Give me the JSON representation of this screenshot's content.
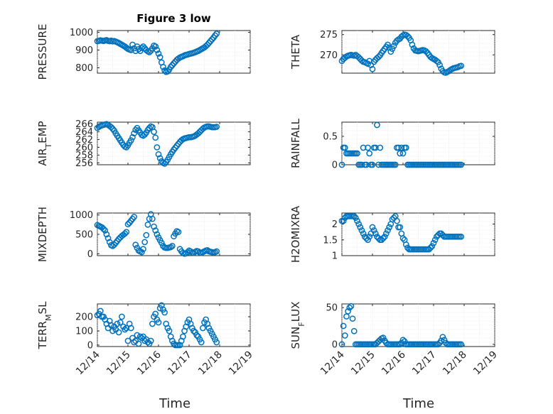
{
  "chart_data": [
    {
      "type": "scatter",
      "title": "Figure 3 low",
      "ylabel": "PRESSURE",
      "ylim": [
        770,
        1010
      ],
      "yticks": [
        800,
        900,
        1000
      ],
      "xlim": [
        0,
        5
      ],
      "x": [
        0,
        0.05,
        0.1,
        0.15,
        0.2,
        0.25,
        0.3,
        0.35,
        0.4,
        0.45,
        0.5,
        0.55,
        0.6,
        0.65,
        0.7,
        0.75,
        0.8,
        0.85,
        0.9,
        0.95,
        1.0,
        1.05,
        1.1,
        1.15,
        1.2,
        1.25,
        1.3,
        1.35,
        1.4,
        1.45,
        1.5,
        1.55,
        1.6,
        1.65,
        1.7,
        1.75,
        1.8,
        1.85,
        1.9,
        1.95,
        2.0,
        2.05,
        2.1,
        2.15,
        2.2,
        2.25,
        2.3,
        2.35,
        2.4,
        2.45,
        2.5,
        2.55,
        2.6,
        2.65,
        2.7,
        2.75,
        2.8,
        2.85,
        2.9,
        2.95,
        3.0,
        3.05,
        3.1,
        3.15,
        3.2,
        3.25,
        3.3,
        3.35,
        3.4,
        3.45,
        3.5,
        3.55,
        3.6,
        3.65,
        3.7,
        3.75,
        3.8,
        3.85,
        3.9
      ],
      "y": [
        950,
        952,
        955,
        953,
        951,
        954,
        956,
        952,
        950,
        953,
        949,
        951,
        948,
        944,
        940,
        935,
        930,
        925,
        920,
        913,
        907,
        903,
        900,
        930,
        910,
        895,
        920,
        905,
        895,
        912,
        920,
        910,
        900,
        893,
        888,
        896,
        910,
        925,
        920,
        900,
        880,
        860,
        830,
        805,
        785,
        777,
        780,
        790,
        805,
        815,
        825,
        835,
        845,
        852,
        858,
        862,
        865,
        870,
        873,
        875,
        878,
        880,
        882,
        885,
        888,
        892,
        895,
        900,
        905,
        910,
        915,
        922,
        930,
        940,
        950,
        960,
        970,
        982,
        992
      ]
    },
    {
      "type": "scatter",
      "ylabel": "THETA",
      "ylim": [
        265.5,
        276
      ],
      "yticks": [
        270,
        275
      ],
      "xlim": [
        0,
        5
      ],
      "x": [
        0,
        0.05,
        0.1,
        0.15,
        0.2,
        0.25,
        0.3,
        0.35,
        0.4,
        0.45,
        0.5,
        0.55,
        0.6,
        0.65,
        0.7,
        0.75,
        0.8,
        0.85,
        0.9,
        0.95,
        1.0,
        1.05,
        1.1,
        1.15,
        1.2,
        1.25,
        1.3,
        1.35,
        1.4,
        1.45,
        1.5,
        1.55,
        1.6,
        1.65,
        1.7,
        1.75,
        1.8,
        1.85,
        1.9,
        1.95,
        2.0,
        2.05,
        2.1,
        2.15,
        2.2,
        2.25,
        2.3,
        2.35,
        2.4,
        2.45,
        2.5,
        2.55,
        2.6,
        2.65,
        2.7,
        2.75,
        2.8,
        2.85,
        2.9,
        2.95,
        3.0,
        3.05,
        3.1,
        3.15,
        3.2,
        3.25,
        3.3,
        3.35,
        3.4,
        3.45,
        3.5,
        3.55,
        3.6,
        3.65,
        3.7,
        3.75,
        3.8,
        3.85,
        3.9
      ],
      "y": [
        268.5,
        269,
        269.3,
        269.6,
        269.8,
        269.9,
        270,
        269.9,
        269.8,
        270,
        269.7,
        269.4,
        269,
        268.6,
        268.3,
        268.2,
        268,
        267.8,
        268.5,
        267.5,
        266.5,
        268.3,
        268.8,
        269.2,
        269.5,
        269.9,
        270.5,
        271,
        271.5,
        272,
        272.5,
        271.8,
        270.8,
        271.5,
        272.2,
        273,
        273.5,
        273.8,
        274,
        274.5,
        274.8,
        275,
        274.9,
        274.6,
        274.2,
        273.6,
        272.5,
        271.6,
        271.1,
        271,
        270.9,
        271,
        271.1,
        271.2,
        271.1,
        270.9,
        270.5,
        270,
        269.5,
        269.2,
        269,
        268.8,
        268.5,
        268.2,
        267.5,
        266.6,
        266,
        265.7,
        265.6,
        265.8,
        266,
        266.3,
        266.5,
        266.7,
        266.8,
        266.9,
        267,
        267.2,
        267.3
      ]
    },
    {
      "type": "scatter",
      "ylabel": "AIR_TEMP",
      "ylim": [
        255.5,
        266.5
      ],
      "yticks": [
        256,
        258,
        260,
        262,
        264,
        266
      ],
      "xlim": [
        0,
        5
      ],
      "x": [
        0,
        0.05,
        0.1,
        0.15,
        0.2,
        0.25,
        0.3,
        0.35,
        0.4,
        0.45,
        0.5,
        0.55,
        0.6,
        0.65,
        0.7,
        0.75,
        0.8,
        0.85,
        0.9,
        0.95,
        1.0,
        1.05,
        1.1,
        1.15,
        1.2,
        1.25,
        1.3,
        1.35,
        1.4,
        1.45,
        1.5,
        1.55,
        1.6,
        1.65,
        1.7,
        1.75,
        1.8,
        1.85,
        1.9,
        1.95,
        2.0,
        2.05,
        2.1,
        2.15,
        2.2,
        2.25,
        2.3,
        2.35,
        2.4,
        2.45,
        2.5,
        2.55,
        2.6,
        2.65,
        2.7,
        2.75,
        2.8,
        2.85,
        2.9,
        2.95,
        3.0,
        3.05,
        3.1,
        3.15,
        3.2,
        3.25,
        3.3,
        3.35,
        3.4,
        3.45,
        3.5,
        3.55,
        3.6,
        3.65,
        3.7,
        3.75,
        3.8,
        3.85,
        3.9
      ],
      "y": [
        265,
        265.3,
        265.5,
        265.7,
        265.8,
        265.9,
        266,
        265.8,
        265.5,
        265.2,
        264.8,
        264.3,
        263.6,
        263,
        262.4,
        261.8,
        261.2,
        260.6,
        260.2,
        260,
        260.5,
        261.2,
        261.8,
        262.6,
        263.6,
        264.5,
        265,
        264.4,
        263.8,
        263.2,
        263,
        263.3,
        263.8,
        264.5,
        265,
        265.4,
        265.2,
        264,
        262.5,
        260,
        258.2,
        257.2,
        256.4,
        256,
        255.8,
        256.2,
        256.8,
        257.5,
        258.2,
        258.8,
        259.4,
        259.9,
        260.4,
        260.9,
        261.4,
        261.8,
        262.1,
        262.3,
        262.4,
        262.5,
        262.6,
        262.6,
        262.7,
        262.8,
        263,
        263.3,
        263.6,
        264,
        264.4,
        264.8,
        265.1,
        265.3,
        265.4,
        265.4,
        265.3,
        265.2,
        265.2,
        265.2,
        265.3
      ]
    },
    {
      "type": "scatter",
      "ylabel": "RAINFALL",
      "ylim": [
        0,
        0.75
      ],
      "yticks": [
        0,
        0.5
      ],
      "xlim": [
        0,
        5
      ],
      "x": [
        0,
        0.05,
        0.1,
        0.15,
        0.2,
        0.25,
        0.3,
        0.35,
        0.4,
        0.45,
        0.5,
        0.55,
        0.6,
        0.65,
        0.7,
        0.75,
        0.8,
        0.85,
        0.9,
        0.95,
        1.0,
        1.05,
        1.1,
        1.15,
        1.2,
        1.25,
        1.3,
        1.35,
        1.4,
        1.45,
        1.5,
        1.55,
        1.6,
        1.65,
        1.7,
        1.75,
        1.8,
        1.85,
        1.9,
        1.95,
        2.0,
        2.05,
        2.1,
        2.15,
        2.2,
        2.25,
        2.3,
        2.35,
        2.4,
        2.45,
        2.5,
        2.55,
        2.6,
        2.65,
        2.7,
        2.75,
        2.8,
        2.85,
        2.9,
        2.95,
        3.0,
        3.05,
        3.1,
        3.15,
        3.2,
        3.25,
        3.3,
        3.35,
        3.4,
        3.45,
        3.5,
        3.55,
        3.6,
        3.65,
        3.7,
        3.75,
        3.8,
        3.85,
        3.9
      ],
      "y": [
        0,
        0.3,
        0.3,
        0.2,
        0.2,
        0.2,
        0.2,
        0.2,
        0.2,
        0.2,
        0.2,
        0,
        0,
        0,
        0.3,
        0,
        0,
        0.3,
        0.2,
        0,
        0,
        0.3,
        0.3,
        0.7,
        0,
        0.3,
        0,
        0,
        0,
        0,
        0,
        0,
        0,
        0,
        0,
        0,
        0.3,
        0.3,
        0.2,
        0.3,
        0.2,
        0.3,
        0.3,
        0,
        0,
        0,
        0,
        0,
        0,
        0,
        0,
        0,
        0,
        0,
        0,
        0,
        0,
        0,
        0,
        0,
        0,
        0,
        0,
        0,
        0,
        0,
        0,
        0,
        0,
        0,
        0,
        0,
        0,
        0,
        0,
        0,
        0,
        0,
        0
      ]
    },
    {
      "type": "scatter",
      "ylabel": "MIXDEPTH",
      "ylim": [
        -50,
        1050
      ],
      "yticks": [
        0,
        500,
        1000
      ],
      "xlim": [
        0,
        5
      ],
      "x": [
        0,
        0.05,
        0.1,
        0.15,
        0.2,
        0.25,
        0.3,
        0.35,
        0.4,
        0.45,
        0.5,
        0.55,
        0.6,
        0.65,
        0.7,
        0.75,
        0.8,
        0.85,
        0.9,
        0.95,
        1.0,
        1.05,
        1.1,
        1.15,
        1.2,
        1.25,
        1.3,
        1.35,
        1.4,
        1.45,
        1.5,
        1.55,
        1.6,
        1.65,
        1.7,
        1.75,
        1.8,
        1.85,
        1.9,
        1.95,
        2.0,
        2.05,
        2.1,
        2.15,
        2.2,
        2.25,
        2.3,
        2.35,
        2.4,
        2.45,
        2.5,
        2.55,
        2.6,
        2.65,
        2.7,
        2.75,
        2.8,
        2.85,
        2.9,
        2.95,
        3.0,
        3.05,
        3.1,
        3.15,
        3.2,
        3.25,
        3.3,
        3.35,
        3.4,
        3.45,
        3.5,
        3.55,
        3.6,
        3.65,
        3.7,
        3.75,
        3.8,
        3.85,
        3.9
      ],
      "y": [
        740,
        720,
        700,
        680,
        640,
        600,
        500,
        400,
        300,
        220,
        200,
        230,
        280,
        330,
        380,
        420,
        460,
        490,
        520,
        560,
        760,
        800,
        850,
        900,
        950,
        230,
        150,
        80,
        60,
        40,
        120,
        300,
        480,
        750,
        900,
        1020,
        900,
        700,
        600,
        500,
        420,
        350,
        280,
        200,
        160,
        150,
        150,
        160,
        170,
        200,
        450,
        520,
        580,
        560,
        120,
        60,
        20,
        0,
        10,
        40,
        80,
        60,
        30,
        20,
        50,
        70,
        60,
        30,
        20,
        40,
        60,
        80,
        90,
        60,
        50,
        40,
        30,
        40,
        60
      ]
    },
    {
      "type": "scatter",
      "ylabel": "H2OMIXRA",
      "ylim": [
        1,
        2.35
      ],
      "yticks": [
        1,
        1.5,
        2
      ],
      "xlim": [
        0,
        5
      ],
      "x": [
        0,
        0.05,
        0.1,
        0.15,
        0.2,
        0.25,
        0.3,
        0.35,
        0.4,
        0.45,
        0.5,
        0.55,
        0.6,
        0.65,
        0.7,
        0.75,
        0.8,
        0.85,
        0.9,
        0.95,
        1.0,
        1.05,
        1.1,
        1.15,
        1.2,
        1.25,
        1.3,
        1.35,
        1.4,
        1.45,
        1.5,
        1.55,
        1.6,
        1.65,
        1.7,
        1.75,
        1.8,
        1.85,
        1.9,
        1.95,
        2.0,
        2.05,
        2.1,
        2.15,
        2.2,
        2.25,
        2.3,
        2.35,
        2.4,
        2.45,
        2.5,
        2.55,
        2.6,
        2.65,
        2.7,
        2.75,
        2.8,
        2.85,
        2.9,
        2.95,
        3.0,
        3.05,
        3.1,
        3.15,
        3.2,
        3.25,
        3.3,
        3.35,
        3.4,
        3.45,
        3.5,
        3.55,
        3.6,
        3.65,
        3.7,
        3.75,
        3.8,
        3.85,
        3.9
      ],
      "y": [
        2.1,
        2.1,
        2.2,
        2.25,
        2.25,
        2.25,
        2.25,
        2.25,
        2.25,
        2.2,
        2.1,
        2.0,
        1.9,
        1.8,
        1.7,
        1.6,
        1.55,
        1.5,
        1.6,
        1.7,
        1.9,
        1.8,
        1.7,
        1.6,
        1.55,
        1.5,
        1.5,
        1.55,
        1.6,
        1.7,
        1.8,
        1.9,
        2.0,
        2.15,
        2.2,
        2.25,
        2.1,
        1.9,
        1.9,
        1.7,
        1.55,
        1.5,
        1.35,
        1.25,
        1.2,
        1.2,
        1.2,
        1.2,
        1.2,
        1.2,
        1.2,
        1.2,
        1.2,
        1.2,
        1.2,
        1.2,
        1.2,
        1.2,
        1.25,
        1.3,
        1.4,
        1.5,
        1.6,
        1.65,
        1.7,
        1.7,
        1.65,
        1.6,
        1.6,
        1.6,
        1.6,
        1.6,
        1.6,
        1.6,
        1.6,
        1.6,
        1.6,
        1.6,
        1.6
      ]
    },
    {
      "type": "scatter",
      "ylabel": "TERR_MSL",
      "ylim": [
        -10,
        290
      ],
      "yticks": [
        0,
        100,
        200
      ],
      "xlim": [
        0,
        5
      ],
      "x": [
        0,
        0.05,
        0.1,
        0.15,
        0.2,
        0.25,
        0.3,
        0.35,
        0.4,
        0.45,
        0.5,
        0.55,
        0.6,
        0.65,
        0.7,
        0.75,
        0.8,
        0.85,
        0.9,
        0.95,
        1.0,
        1.05,
        1.1,
        1.15,
        1.2,
        1.25,
        1.3,
        1.35,
        1.4,
        1.45,
        1.5,
        1.55,
        1.6,
        1.65,
        1.7,
        1.75,
        1.8,
        1.85,
        1.9,
        1.95,
        2.0,
        2.05,
        2.1,
        2.15,
        2.2,
        2.25,
        2.3,
        2.35,
        2.4,
        2.45,
        2.5,
        2.55,
        2.6,
        2.65,
        2.7,
        2.75,
        2.8,
        2.85,
        2.9,
        2.95,
        3.0,
        3.05,
        3.1,
        3.15,
        3.2,
        3.25,
        3.3,
        3.35,
        3.4,
        3.45,
        3.5,
        3.55,
        3.6,
        3.65,
        3.7,
        3.75,
        3.8,
        3.85,
        3.9
      ],
      "y": [
        210,
        220,
        240,
        200,
        200,
        180,
        150,
        120,
        170,
        140,
        100,
        130,
        110,
        150,
        90,
        160,
        200,
        130,
        110,
        120,
        30,
        150,
        120,
        50,
        20,
        30,
        70,
        10,
        60,
        50,
        60,
        30,
        40,
        20,
        10,
        30,
        150,
        200,
        220,
        180,
        160,
        260,
        280,
        250,
        230,
        150,
        120,
        100,
        60,
        30,
        10,
        0,
        0,
        0,
        0,
        30,
        60,
        100,
        130,
        160,
        180,
        150,
        120,
        100,
        90,
        70,
        60,
        40,
        20,
        120,
        160,
        180,
        150,
        120,
        100,
        80,
        60,
        40,
        20
      ]
    },
    {
      "type": "scatter",
      "ylabel": "SUN_FLUX",
      "ylim": [
        -3,
        55
      ],
      "yticks": [
        0,
        50
      ],
      "xlim": [
        0,
        5
      ],
      "x": [
        0,
        0.05,
        0.1,
        0.15,
        0.2,
        0.25,
        0.3,
        0.35,
        0.4,
        0.45,
        0.5,
        0.55,
        0.6,
        0.65,
        0.7,
        0.75,
        0.8,
        0.85,
        0.9,
        0.95,
        1.0,
        1.05,
        1.1,
        1.15,
        1.2,
        1.25,
        1.3,
        1.35,
        1.4,
        1.45,
        1.5,
        1.55,
        1.6,
        1.65,
        1.7,
        1.75,
        1.8,
        1.85,
        1.9,
        1.95,
        2.0,
        2.05,
        2.1,
        2.15,
        2.2,
        2.25,
        2.3,
        2.35,
        2.4,
        2.45,
        2.5,
        2.55,
        2.6,
        2.65,
        2.7,
        2.75,
        2.8,
        2.85,
        2.9,
        2.95,
        3.0,
        3.05,
        3.1,
        3.15,
        3.2,
        3.25,
        3.3,
        3.35,
        3.4,
        3.45,
        3.5,
        3.55,
        3.6,
        3.65,
        3.7,
        3.75,
        3.8,
        3.85,
        3.9
      ],
      "y": [
        0,
        25,
        12,
        38,
        45,
        50,
        52,
        35,
        18,
        0,
        0,
        0,
        0,
        0,
        0,
        0,
        0,
        0,
        0,
        0,
        0,
        0,
        0,
        2,
        4,
        6,
        8,
        9,
        5,
        2,
        0,
        0,
        0,
        0,
        0,
        0,
        0,
        0,
        0,
        2,
        6,
        4,
        0,
        0,
        0,
        0,
        0,
        0,
        0,
        0,
        0,
        0,
        0,
        0,
        0,
        0,
        0,
        0,
        0,
        0,
        0,
        0,
        0,
        0,
        2,
        5,
        10,
        6,
        2,
        0,
        0,
        0,
        0,
        0,
        0,
        0,
        0,
        0,
        0
      ]
    }
  ],
  "x_tick_labels": [
    "12/14",
    "12/15",
    "12/16",
    "12/17",
    "12/18",
    "12/19"
  ],
  "xlabel": "Time"
}
